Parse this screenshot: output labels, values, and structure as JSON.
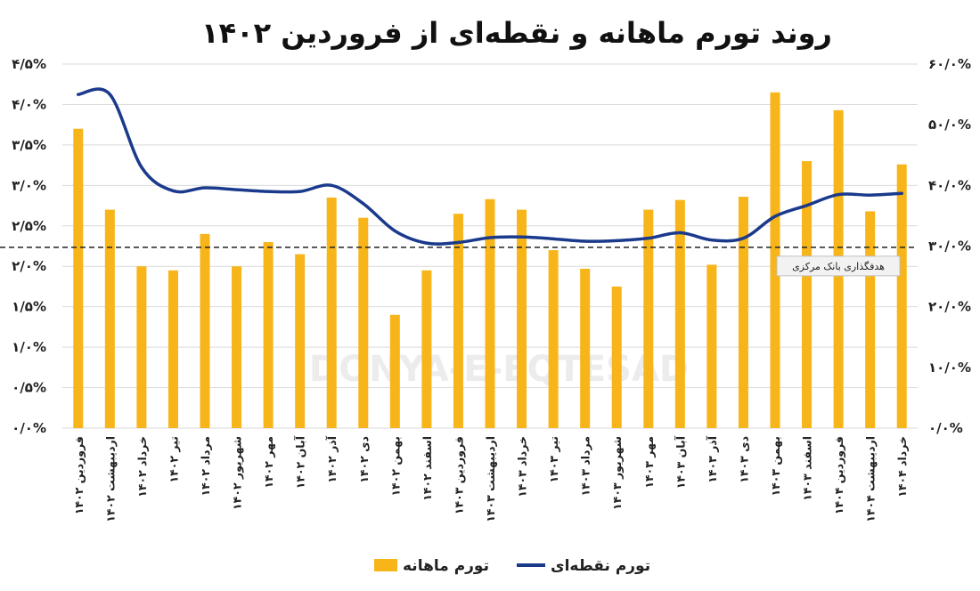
{
  "chart_data": {
    "type": "bar",
    "title": "روند تورم ماهانه و نقطه‌ای از فروردین ۱۴۰۲",
    "categories": [
      "فروردین ۱۴۰۲",
      "اردیبهشت ۱۴۰۲",
      "خرداد ۱۴۰۲",
      "تیر ۱۴۰۲",
      "مرداد ۱۴۰۲",
      "شهریور ۱۴۰۲",
      "مهر ۱۴۰۲",
      "آبان ۱۴۰۲",
      "آذر ۱۴۰۲",
      "دی ۱۴۰۲",
      "بهمن ۱۴۰۲",
      "اسفند ۱۴۰۲",
      "فروردین ۱۴۰۳",
      "اردیبهشت ۱۴۰۳",
      "خرداد ۱۴۰۳",
      "تیر ۱۴۰۳",
      "مرداد ۱۴۰۳",
      "شهریور ۱۴۰۳",
      "مهر ۱۴۰۳",
      "آبان ۱۴۰۳",
      "آذر ۱۴۰۳",
      "دی ۱۴۰۳",
      "بهمن ۱۴۰۳",
      "اسفند ۱۴۰۳",
      "فروردین ۱۴۰۴",
      "اردیبهشت ۱۴۰۴",
      "خرداد ۱۴۰۴"
    ],
    "series": [
      {
        "name": "تورم ماهانه",
        "axis": "left",
        "color": "#F7B519",
        "values": [
          3.7,
          2.7,
          2.0,
          1.95,
          2.4,
          2.0,
          2.3,
          2.15,
          2.85,
          2.6,
          1.4,
          1.95,
          2.65,
          2.83,
          2.7,
          2.2,
          1.97,
          1.75,
          2.7,
          2.82,
          2.02,
          2.86,
          4.15,
          3.3,
          3.93,
          2.68,
          3.26
        ]
      },
      {
        "name": "تورم نقطه‌ای",
        "axis": "right",
        "color": "#1B3A8C",
        "values": [
          55.0,
          55.0,
          43.0,
          39.1,
          39.6,
          39.3,
          39.0,
          39.0,
          40.0,
          37.0,
          32.5,
          30.5,
          30.6,
          31.4,
          31.5,
          31.2,
          30.8,
          30.9,
          31.3,
          32.2,
          31.0,
          31.3,
          34.9,
          36.7,
          38.5,
          38.4,
          38.7
        ]
      }
    ],
    "target_line": {
      "value": 29.8,
      "axis": "right",
      "label": "هدفگذاری بانک مرکزی"
    },
    "left_axis": {
      "ylim": [
        0,
        4.5
      ],
      "ticks": [
        0,
        0.5,
        1,
        1.5,
        2,
        2.5,
        3,
        3.5,
        4,
        4.5
      ],
      "tick_labels": [
        "۰/۰%",
        "۰/۵%",
        "۱/۰%",
        "۱/۵%",
        "۲/۰%",
        "۲/۵%",
        "۳/۰%",
        "۳/۵%",
        "۴/۰%",
        "۴/۵%"
      ]
    },
    "right_axis": {
      "ylim": [
        0,
        60
      ],
      "ticks": [
        0,
        10,
        20,
        30,
        40,
        50,
        60
      ],
      "tick_labels": [
        "۰/۰%",
        "۱۰/۰%",
        "۲۰/۰%",
        "۳۰/۰%",
        "۴۰/۰%",
        "۵۰/۰%",
        "۶۰/۰%"
      ]
    },
    "grid": true,
    "legend_position": "bottom",
    "watermark": "DONYA-E-EQTESAD"
  }
}
